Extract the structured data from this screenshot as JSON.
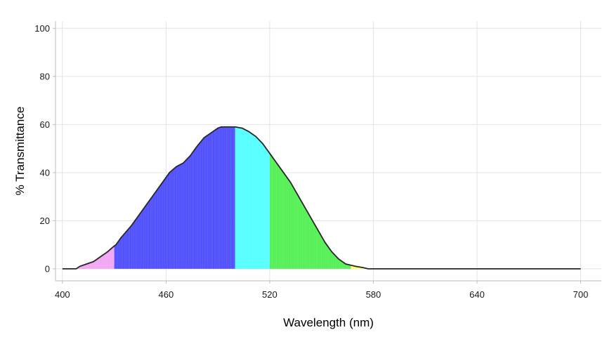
{
  "chart_data": {
    "type": "area",
    "title": "",
    "xlabel": "Wavelength (nm)",
    "ylabel": "% Transmittance",
    "xlim": [
      396,
      712
    ],
    "ylim": [
      -5,
      103
    ],
    "x_ticks": [
      400,
      460,
      520,
      580,
      640,
      700
    ],
    "y_ticks": [
      0,
      20,
      40,
      60,
      80,
      100
    ],
    "grid": true,
    "x": [
      400,
      408,
      410,
      414,
      418,
      422,
      426,
      430,
      431,
      434,
      440,
      446,
      452,
      458,
      462,
      466,
      470,
      474,
      478,
      482,
      486,
      490,
      492,
      494,
      496,
      500,
      504,
      508,
      512,
      516,
      520,
      524,
      528,
      532,
      536,
      540,
      544,
      548,
      552,
      556,
      560,
      564,
      567,
      570,
      574,
      577,
      580,
      600,
      624,
      626,
      700
    ],
    "values": [
      0,
      0,
      1,
      2,
      3,
      5,
      7,
      9.5,
      10,
      13,
      18,
      24,
      30,
      36,
      40,
      42.5,
      44,
      47,
      51,
      54.5,
      56.5,
      58.5,
      59,
      59,
      59,
      59,
      58.5,
      57,
      55,
      52,
      48,
      44,
      40,
      36,
      31,
      26,
      21,
      16,
      11,
      7,
      4,
      2,
      1.5,
      1,
      0.5,
      0,
      0,
      0,
      0,
      0,
      0
    ],
    "color_bands": [
      {
        "from": 400,
        "to": 430,
        "color": "#f4a6f4"
      },
      {
        "from": 430,
        "to": 500,
        "color": "#5050ff"
      },
      {
        "from": 500,
        "to": 520,
        "color": "#55ffff"
      },
      {
        "from": 520,
        "to": 567,
        "color": "#55f055"
      },
      {
        "from": 567,
        "to": 580,
        "color": "#ffff66"
      }
    ],
    "curve_color": "#262626"
  }
}
